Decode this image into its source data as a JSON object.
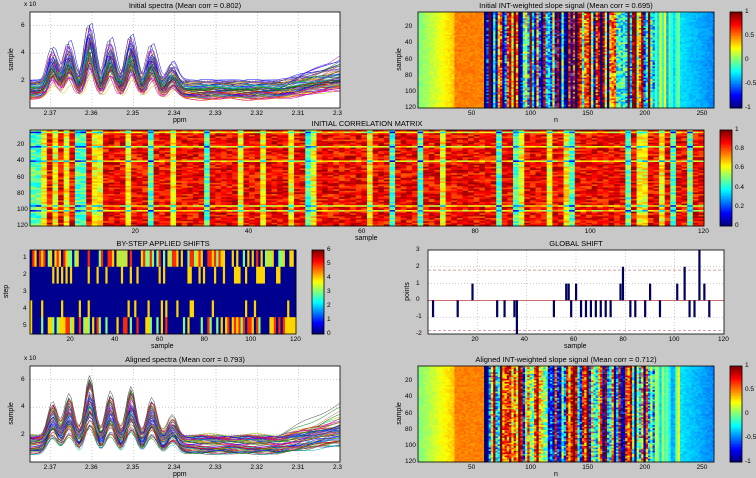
{
  "colors": {
    "background": "#c8c8c8",
    "axes_bg": "#ffffff",
    "shift_bar": "#000060",
    "limit_line": "#d08080"
  },
  "chart_data": [
    {
      "id": "initial_spectra",
      "type": "line",
      "title": "Initial spectra (Mean corr = 0.802)",
      "xlabel": "ppm",
      "ylabel": "sample",
      "x_reversed": true,
      "xlim": [
        2.3,
        2.375
      ],
      "ylim": [
        0,
        7
      ],
      "xticks": [
        "2.37",
        "2.36",
        "2.35",
        "2.34",
        "2.33",
        "2.32",
        "2.31",
        "2.3"
      ],
      "yticks": [
        "2",
        "4",
        "6"
      ],
      "y_exponent": "x 10",
      "peaks_ppm": [
        2.3695,
        2.3655,
        2.3605,
        2.3555,
        2.3505,
        2.3455,
        2.3405
      ],
      "n_spectra": 120
    },
    {
      "id": "initial_int_slope",
      "type": "heatmap",
      "title": "Initial INT-weighted slope signal (Mean corr = 0.695)",
      "xlabel": "n",
      "ylabel": "sample",
      "xlim": [
        1,
        260
      ],
      "ylim": [
        1,
        120
      ],
      "xticks": [
        "50",
        "100",
        "150",
        "200",
        "250"
      ],
      "yticks": [
        "20",
        "40",
        "60",
        "80",
        "100",
        "120"
      ],
      "colorbar": {
        "min": -1,
        "max": 1,
        "ticks": [
          "1",
          "0.5",
          "0",
          "-0.5",
          "-1"
        ]
      }
    },
    {
      "id": "initial_corr_matrix",
      "type": "heatmap",
      "title": "INITIAL CORRELATION MATRIX",
      "xlabel": "sample",
      "ylabel": "",
      "xlim": [
        1,
        120
      ],
      "ylim": [
        1,
        120
      ],
      "xticks": [
        "20",
        "40",
        "60",
        "80",
        "100",
        "120"
      ],
      "yticks": [
        "20",
        "40",
        "60",
        "80",
        "100",
        "120"
      ],
      "colorbar": {
        "min": 0,
        "max": 1,
        "ticks": [
          "1",
          "0.8",
          "0.6",
          "0.4",
          "0.2",
          "0"
        ]
      }
    },
    {
      "id": "by_step_shifts",
      "type": "heatmap",
      "title": "BY-STEP APPLIED SHIFTS",
      "xlabel": "sample",
      "ylabel": "step",
      "xlim": [
        1,
        120
      ],
      "ylim": [
        1,
        5
      ],
      "xticks": [
        "20",
        "40",
        "60",
        "80",
        "100",
        "120"
      ],
      "yticks": [
        "1",
        "2",
        "3",
        "4",
        "5"
      ],
      "colorbar": {
        "min": 0,
        "max": 6,
        "ticks": [
          "6",
          "5",
          "4",
          "3",
          "2",
          "1",
          "0"
        ]
      }
    },
    {
      "id": "global_shift",
      "type": "bar",
      "title": "GLOBAL SHIFT",
      "xlabel": "sample",
      "ylabel": "points",
      "xlim": [
        0,
        120
      ],
      "ylim": [
        -2,
        3
      ],
      "xticks": [
        "20",
        "40",
        "60",
        "80",
        "100",
        "120"
      ],
      "yticks": [
        "3",
        "2",
        "1",
        "0",
        "-1",
        "-2"
      ],
      "limit_lines": [
        1.8,
        -1.8
      ],
      "samples": [
        2,
        12,
        18,
        28,
        31,
        35,
        36,
        51,
        56,
        57,
        58,
        60,
        62,
        64,
        66,
        68,
        70,
        72,
        74,
        78,
        79,
        82,
        84,
        88,
        90,
        94,
        101,
        104,
        106,
        108,
        110,
        112,
        114
      ],
      "values": [
        -1,
        -1,
        1,
        -1,
        -1,
        -1,
        -2,
        -1,
        1,
        1,
        -1,
        1,
        -1,
        -1,
        -1,
        -1,
        -1,
        -1,
        -1,
        1,
        2,
        -1,
        -1,
        -1,
        1,
        -1,
        1,
        2,
        -1,
        -1,
        3,
        1,
        -1
      ]
    },
    {
      "id": "aligned_spectra",
      "type": "line",
      "title": "Aligned spectra (Mean corr = 0.793)",
      "xlabel": "ppm",
      "ylabel": "sample",
      "x_reversed": true,
      "xlim": [
        2.3,
        2.375
      ],
      "ylim": [
        0,
        7
      ],
      "xticks": [
        "2.37",
        "2.36",
        "2.35",
        "2.34",
        "2.33",
        "2.32",
        "2.31",
        "2.3"
      ],
      "yticks": [
        "2",
        "4",
        "6"
      ],
      "y_exponent": "x 10",
      "peaks_ppm": [
        2.3695,
        2.3655,
        2.3605,
        2.3555,
        2.3505,
        2.3455,
        2.3405
      ],
      "n_spectra": 120
    },
    {
      "id": "aligned_int_slope",
      "type": "heatmap",
      "title": "Aligned INT-weighted slope signal (Mean corr = 0.712)",
      "xlabel": "n",
      "ylabel": "sample",
      "xlim": [
        1,
        260
      ],
      "ylim": [
        1,
        120
      ],
      "xticks": [
        "50",
        "100",
        "150",
        "200",
        "250"
      ],
      "yticks": [
        "20",
        "40",
        "60",
        "80",
        "100",
        "120"
      ],
      "colorbar": {
        "min": -1,
        "max": 1,
        "ticks": [
          "1",
          "0.5",
          "0",
          "-0.5",
          "-1"
        ]
      }
    }
  ]
}
